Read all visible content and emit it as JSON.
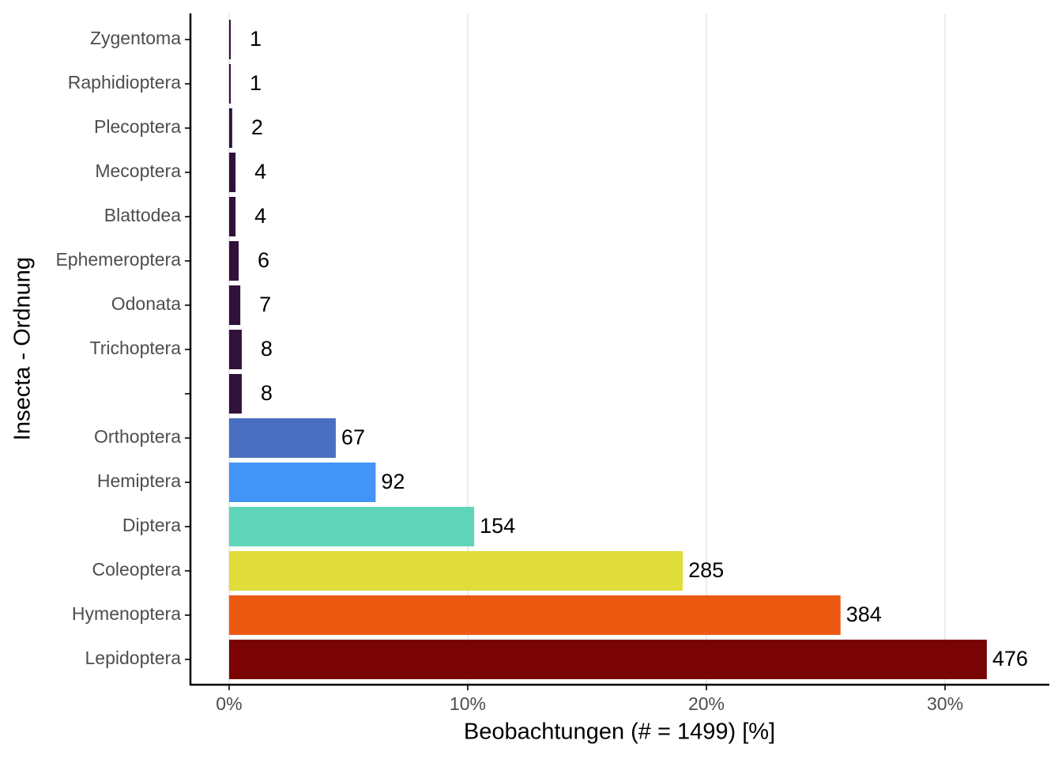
{
  "chart_data": {
    "type": "bar",
    "orientation": "horizontal",
    "x_label": "Beobachtungen (# = 1499) [%]",
    "y_label": "Insecta - Ordnung",
    "categories": [
      "Zygentoma",
      "Raphidioptera",
      "Plecoptera",
      "Mecoptera",
      "Blattodea",
      "Ephemeroptera",
      "Odonata",
      "Trichoptera",
      null,
      "Orthoptera",
      "Hemiptera",
      "Diptera",
      "Coleoptera",
      "Hymenoptera",
      "Lepidoptera"
    ],
    "values": [
      0.07,
      0.07,
      0.13,
      0.27,
      0.27,
      0.4,
      0.47,
      0.53,
      0.53,
      4.47,
      6.14,
      10.27,
      19.01,
      25.62,
      31.75
    ],
    "value_labels": [
      "1",
      "1",
      "2",
      "4",
      "4",
      "6",
      "7",
      "8",
      "8",
      "67",
      "92",
      "154",
      "285",
      "384",
      "476"
    ],
    "colors": [
      "#30123b",
      "#30123b",
      "#30123b",
      "#30123b",
      "#30123b",
      "#30123b",
      "#30123b",
      "#30123b",
      "#30123b",
      "#4a6fc0",
      "#4394f7",
      "#5fd4b8",
      "#e0dd3a",
      "#ec5a12",
      "#7a0403"
    ],
    "xlim": [
      -1.62,
      34.37
    ],
    "xticks": [
      {
        "value": 0,
        "label": "0%"
      },
      {
        "value": 10,
        "label": "10%"
      },
      {
        "value": 20,
        "label": "20%"
      },
      {
        "value": 30,
        "label": "30%"
      }
    ],
    "grid": true
  }
}
